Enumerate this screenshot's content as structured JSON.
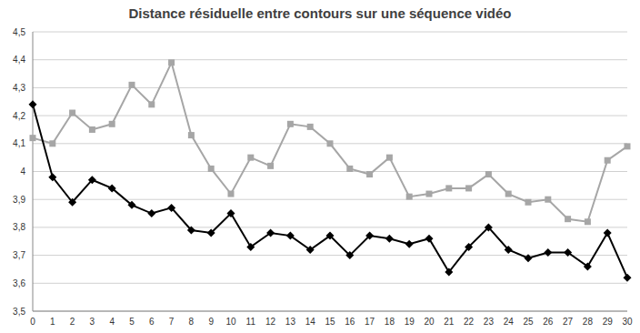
{
  "chart_data": {
    "type": "line",
    "title": "Distance résiduelle entre contours sur une séquence vidéo",
    "categories": [
      "0",
      "1",
      "2",
      "3",
      "4",
      "5",
      "6",
      "7",
      "8",
      "9",
      "10",
      "11",
      "12",
      "13",
      "14",
      "15",
      "16",
      "17",
      "18",
      "19",
      "20",
      "21",
      "22",
      "23",
      "24",
      "25",
      "26",
      "27",
      "28",
      "29",
      "30"
    ],
    "series": [
      {
        "color": "#a6a6a6",
        "marker": "square",
        "values": [
          4.12,
          4.1,
          4.21,
          4.15,
          4.17,
          4.31,
          4.24,
          4.39,
          4.13,
          4.01,
          3.92,
          4.05,
          4.02,
          4.17,
          4.16,
          4.1,
          4.01,
          3.99,
          4.05,
          3.91,
          3.92,
          3.94,
          3.94,
          3.99,
          3.92,
          3.89,
          3.9,
          3.83,
          3.82,
          4.04,
          4.09
        ]
      },
      {
        "color": "#000000",
        "marker": "diamond",
        "values": [
          4.24,
          3.98,
          3.89,
          3.97,
          3.94,
          3.88,
          3.85,
          3.87,
          3.79,
          3.78,
          3.85,
          3.73,
          3.78,
          3.77,
          3.72,
          3.77,
          3.7,
          3.77,
          3.76,
          3.74,
          3.76,
          3.64,
          3.73,
          3.8,
          3.72,
          3.69,
          3.71,
          3.71,
          3.66,
          3.78,
          3.62
        ]
      }
    ],
    "ylim": [
      3.5,
      4.5
    ],
    "yticks": [
      {
        "value": 3.5,
        "label": "3,5"
      },
      {
        "value": 3.6,
        "label": "3,6"
      },
      {
        "value": 3.7,
        "label": "3,7"
      },
      {
        "value": 3.8,
        "label": "3,8"
      },
      {
        "value": 3.9,
        "label": "3,9"
      },
      {
        "value": 4,
        "label": "4"
      },
      {
        "value": 4.1,
        "label": "4,1"
      },
      {
        "value": 4.2,
        "label": "4,2"
      },
      {
        "value": 4.3,
        "label": "4,3"
      },
      {
        "value": 4.4,
        "label": "4,4"
      },
      {
        "value": 4.5,
        "label": "4,5"
      }
    ],
    "grid": true
  }
}
